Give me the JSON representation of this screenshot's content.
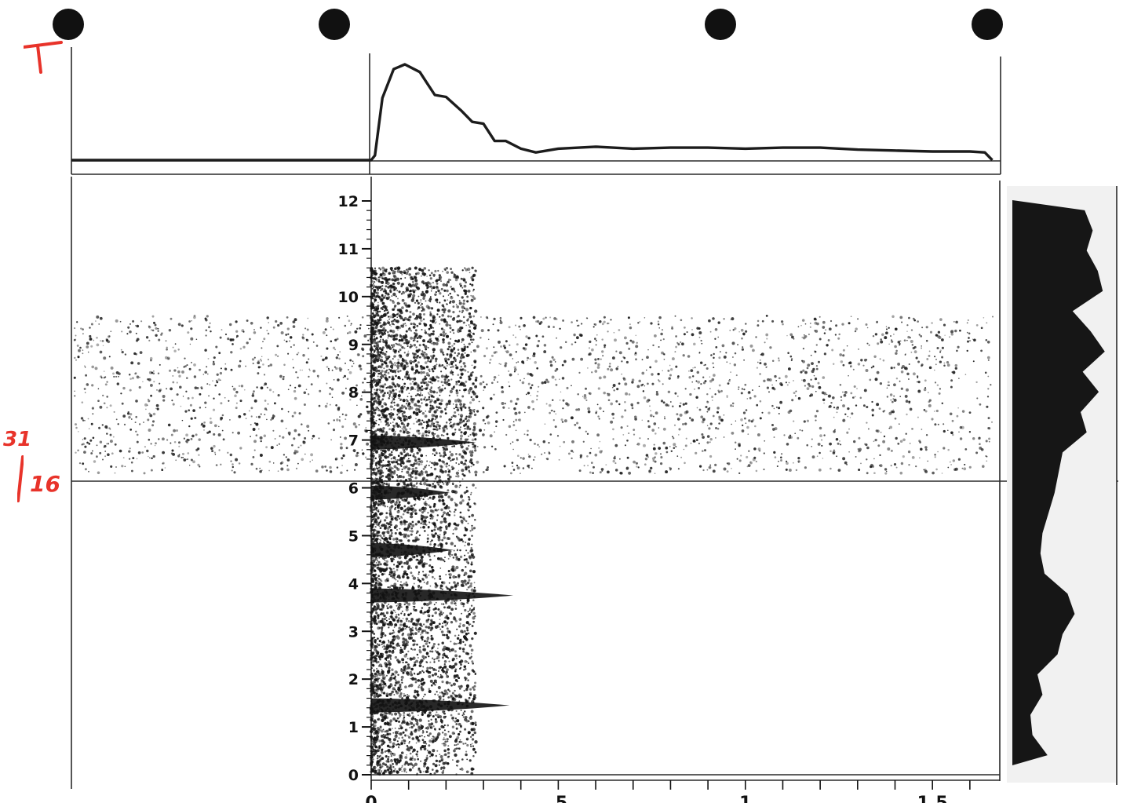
{
  "chart_data": {
    "type": "spectrogram",
    "panels": [
      "amplitude envelope",
      "spectrogram",
      "spectral section"
    ],
    "y_axis": {
      "range": [
        0,
        12.5
      ],
      "ticks": [
        0,
        1,
        2,
        3,
        4,
        5,
        6,
        7,
        8,
        9,
        10,
        11,
        12
      ],
      "tick_labels": [
        "0",
        "1",
        "2",
        "3",
        "4",
        "5",
        "6",
        "7",
        "8",
        "9",
        "10",
        "11",
        "12"
      ]
    },
    "x_axis": {
      "range": [
        0,
        1.68
      ],
      "major_ticks": [
        0,
        0.5,
        1.0,
        1.5
      ],
      "tick_labels": [
        "0",
        ".5",
        "1",
        "1.5"
      ],
      "minor_step": 0.1
    },
    "envelope": {
      "x": [
        0,
        0.01,
        0.03,
        0.06,
        0.09,
        0.13,
        0.15,
        0.17,
        0.2,
        0.24,
        0.27,
        0.3,
        0.33,
        0.36,
        0.4,
        0.44,
        0.5,
        0.6,
        0.7,
        0.8,
        0.9,
        1.0,
        1.1,
        1.2,
        1.3,
        1.4,
        1.5,
        1.6,
        1.64,
        1.66
      ],
      "y": [
        0,
        0.05,
        0.65,
        0.95,
        1.0,
        0.92,
        0.8,
        0.68,
        0.66,
        0.52,
        0.4,
        0.38,
        0.2,
        0.2,
        0.12,
        0.08,
        0.12,
        0.14,
        0.12,
        0.13,
        0.13,
        0.12,
        0.13,
        0.13,
        0.11,
        0.1,
        0.09,
        0.09,
        0.08,
        0.0
      ]
    },
    "bands": [
      {
        "freq": 1.45,
        "x_end": 0.37
      },
      {
        "freq": 3.75,
        "x_end": 0.38
      },
      {
        "freq": 6.95,
        "x_end": 0.28
      },
      {
        "freq": 4.7,
        "x_end": 0.22
      },
      {
        "freq": 5.9,
        "x_end": 0.21
      }
    ],
    "section_levels": [
      0.72,
      0.8,
      0.74,
      0.85,
      0.9,
      0.6,
      0.78,
      0.92,
      0.7,
      0.86,
      0.68,
      0.74,
      0.5,
      0.46,
      0.42,
      0.36,
      0.3,
      0.28,
      0.32,
      0.55,
      0.62,
      0.5,
      0.45,
      0.25,
      0.3,
      0.18,
      0.2,
      0.35
    ]
  },
  "annotations": {
    "corner_mark": "T",
    "page_number_top": "31",
    "page_number_bottom": "16"
  },
  "colors": {
    "ink": "#1c1c1c",
    "paper": "#ffffff",
    "annotation": "#e8332a"
  }
}
